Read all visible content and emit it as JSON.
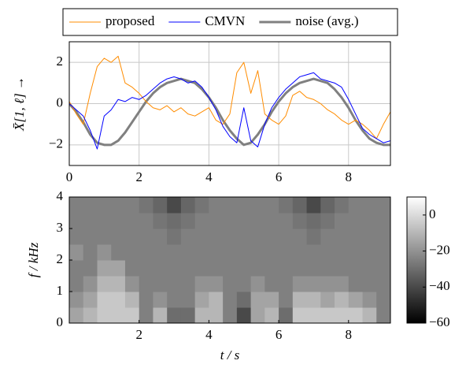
{
  "chart_data": [
    {
      "type": "line",
      "ylabel": "X̄[1, ℓ]  →",
      "x": [
        0,
        0.2,
        0.4,
        0.6,
        0.8,
        1.0,
        1.2,
        1.4,
        1.6,
        1.8,
        2.0,
        2.2,
        2.4,
        2.6,
        2.8,
        3.0,
        3.2,
        3.4,
        3.6,
        3.8,
        4.0,
        4.2,
        4.4,
        4.6,
        4.8,
        5.0,
        5.2,
        5.4,
        5.6,
        5.8,
        6.0,
        6.2,
        6.4,
        6.6,
        6.8,
        7.0,
        7.2,
        7.4,
        7.6,
        7.8,
        8.0,
        8.2,
        8.4,
        8.6,
        8.8,
        9.0,
        9.2
      ],
      "series": [
        {
          "name": "proposed",
          "color": "#ff8c00",
          "width": 1,
          "values": [
            0.1,
            -0.5,
            -1.0,
            0.5,
            1.8,
            2.2,
            2.0,
            2.3,
            1.0,
            0.8,
            0.5,
            0.1,
            -0.2,
            -0.3,
            -0.1,
            -0.4,
            -0.2,
            -0.5,
            -0.6,
            -0.4,
            -0.2,
            -0.8,
            -1.0,
            -0.5,
            1.5,
            2.0,
            0.5,
            1.6,
            -0.5,
            -0.8,
            -1.0,
            -0.6,
            0.4,
            0.6,
            0.3,
            0.2,
            0.0,
            -0.3,
            -0.5,
            -0.8,
            -1.0,
            -0.8,
            -1.0,
            -1.3,
            -1.7,
            -1.0,
            -0.4
          ]
        },
        {
          "name": "CMVN",
          "color": "#0000ff",
          "width": 1,
          "values": [
            0,
            -0.3,
            -0.6,
            -1.3,
            -2.2,
            -0.6,
            -0.3,
            0.2,
            0.1,
            0.3,
            0.2,
            0.4,
            0.7,
            1.0,
            1.2,
            1.3,
            1.2,
            1.0,
            1.1,
            0.8,
            0.3,
            -0.3,
            -1.1,
            -1.6,
            -1.9,
            -0.2,
            -1.8,
            -2.1,
            -1.0,
            -0.2,
            0.3,
            0.7,
            1.0,
            1.3,
            1.4,
            1.5,
            1.2,
            1.1,
            1.0,
            0.8,
            0.2,
            -0.5,
            -1.2,
            -1.5,
            -1.7,
            -1.9,
            -1.8
          ]
        },
        {
          "name": "noise (avg.)",
          "color": "#808080",
          "width": 3,
          "values": [
            0,
            -0.4,
            -0.9,
            -1.5,
            -1.9,
            -2.0,
            -2.0,
            -1.8,
            -1.4,
            -0.9,
            -0.4,
            0.1,
            0.5,
            0.8,
            1.0,
            1.1,
            1.2,
            1.1,
            1.0,
            0.7,
            0.3,
            -0.2,
            -0.8,
            -1.3,
            -1.7,
            -2.0,
            -1.9,
            -1.5,
            -1.0,
            -0.4,
            0.1,
            0.5,
            0.8,
            1.0,
            1.1,
            1.2,
            1.1,
            1.0,
            0.7,
            0.3,
            -0.2,
            -0.8,
            -1.3,
            -1.7,
            -1.9,
            -2.0,
            -2.0
          ]
        }
      ],
      "xlim": [
        0,
        9.2
      ],
      "ylim": [
        -3,
        3
      ],
      "xticks": [
        0,
        2,
        4,
        6,
        8
      ],
      "yticks": [
        {
          "value": -2,
          "label": "−2"
        },
        0,
        2
      ],
      "grid": true,
      "legend": "top"
    },
    {
      "type": "heatmap",
      "xlabel": "t / s",
      "ylabel": "f / kHz",
      "x": [
        0.2,
        0.6,
        1.0,
        1.4,
        1.8,
        2.2,
        2.6,
        3.0,
        3.4,
        3.8,
        4.2,
        4.6,
        5.0,
        5.4,
        5.8,
        6.2,
        6.6,
        7.0,
        7.4,
        7.8,
        8.2,
        8.6,
        9.0
      ],
      "y": [
        0.25,
        0.75,
        1.25,
        1.75,
        2.25,
        2.75,
        3.25,
        3.75
      ],
      "z": [
        [
          -15,
          -10,
          -5,
          -5,
          -5,
          -25,
          -10,
          -30,
          -30,
          -10,
          -10,
          -25,
          -40,
          -15,
          -10,
          -30,
          -5,
          -5,
          -5,
          -5,
          -5,
          -10,
          -25
        ],
        [
          -20,
          -15,
          -5,
          -5,
          -10,
          -25,
          -20,
          -25,
          -25,
          -15,
          -10,
          -25,
          -30,
          -15,
          -15,
          -25,
          -10,
          -10,
          -15,
          -10,
          -15,
          -20,
          -25
        ],
        [
          -25,
          -20,
          -10,
          -10,
          -20,
          -25,
          -25,
          -25,
          -25,
          -20,
          -20,
          -25,
          -25,
          -20,
          -25,
          -25,
          -20,
          -20,
          -20,
          -20,
          -25,
          -25,
          -25
        ],
        [
          -25,
          -25,
          -15,
          -15,
          -25,
          -25,
          -25,
          -25,
          -25,
          -25,
          -25,
          -25,
          -25,
          -25,
          -25,
          -25,
          -25,
          -25,
          -25,
          -25,
          -25,
          -25,
          -25
        ],
        [
          -20,
          -25,
          -20,
          -25,
          -25,
          -25,
          -25,
          -25,
          -25,
          -25,
          -25,
          -25,
          -25,
          -25,
          -25,
          -25,
          -25,
          -25,
          -25,
          -25,
          -25,
          -25,
          -25
        ],
        [
          -25,
          -25,
          -25,
          -25,
          -25,
          -25,
          -25,
          -28,
          -25,
          -25,
          -25,
          -25,
          -25,
          -25,
          -25,
          -25,
          -25,
          -28,
          -25,
          -25,
          -25,
          -25,
          -25
        ],
        [
          -25,
          -25,
          -25,
          -25,
          -25,
          -25,
          -28,
          -30,
          -28,
          -25,
          -25,
          -25,
          -25,
          -25,
          -25,
          -25,
          -28,
          -30,
          -28,
          -25,
          -25,
          -25,
          -25
        ],
        [
          -25,
          -25,
          -25,
          -25,
          -25,
          -28,
          -32,
          -40,
          -32,
          -28,
          -25,
          -25,
          -25,
          -25,
          -25,
          -28,
          -32,
          -40,
          -32,
          -28,
          -25,
          -25,
          -25
        ]
      ],
      "xlim": [
        0,
        9.2
      ],
      "ylim": [
        0,
        4
      ],
      "xticks": [
        2,
        4,
        6,
        8
      ],
      "yticks": [
        0,
        1,
        2,
        3,
        4
      ],
      "clim": [
        -60,
        10
      ],
      "cticks": [
        {
          "value": -60,
          "label": "−60"
        },
        {
          "value": -40,
          "label": "−40"
        },
        {
          "value": -20,
          "label": "−20"
        },
        0
      ]
    }
  ]
}
